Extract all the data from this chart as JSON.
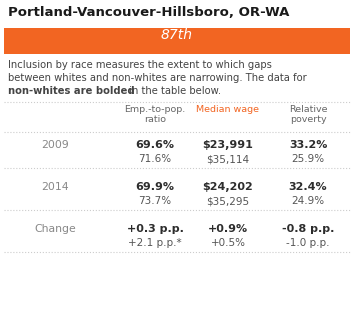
{
  "title": "Portland-Vancouver-Hillsboro, OR-WA",
  "rank_label": "87th",
  "rank_bg_color": "#F26522",
  "rank_text_color": "#ffffff",
  "col_headers": [
    "Emp.-to-pop.\nratio",
    "Median wage",
    "Relative\npoverty"
  ],
  "col_header_colors": [
    "#666666",
    "#F26522",
    "#666666"
  ],
  "row_labels": [
    "2009",
    "2014",
    "Change"
  ],
  "rows": [
    [
      [
        "69.6%",
        "71.6%"
      ],
      [
        "$23,991",
        "$35,114"
      ],
      [
        "33.2%",
        "25.9%"
      ]
    ],
    [
      [
        "69.9%",
        "73.7%"
      ],
      [
        "$24,202",
        "$35,295"
      ],
      [
        "32.4%",
        "24.9%"
      ]
    ],
    [
      [
        "+0.3 p.p.",
        "+2.1 p.p.*"
      ],
      [
        "+0.9%",
        "+0.5%"
      ],
      [
        "-0.8 p.p.",
        "-1.0 p.p."
      ]
    ]
  ],
  "nonwhite_color": "#2d2d2d",
  "white_color": "#555555",
  "label_color": "#888888",
  "bg_color": "#ffffff",
  "border_color": "#cccccc",
  "title_color": "#1a1a1a"
}
